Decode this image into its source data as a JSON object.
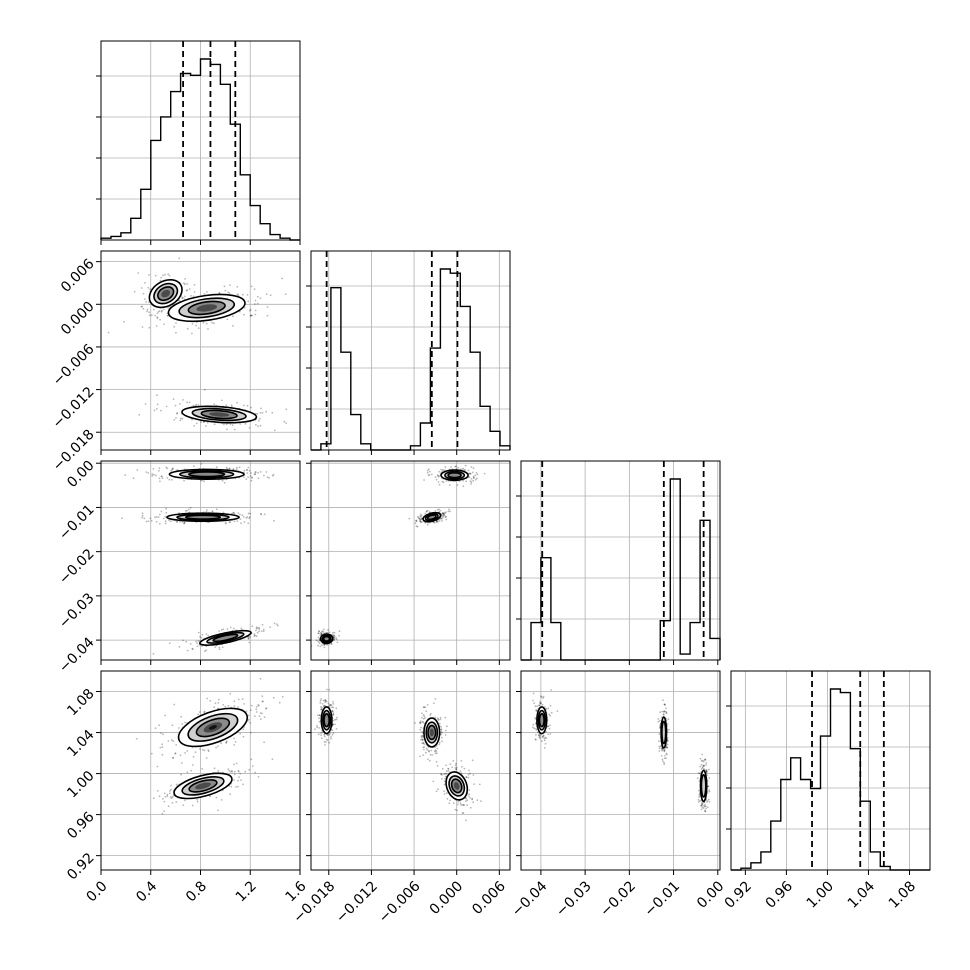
{
  "colors": {
    "ink": "#000000",
    "grid": "#b0b0b0",
    "background": "#ffffff",
    "fill_levels": [
      "#ffffff",
      "#cfcfcf",
      "#8a8a8a",
      "#4a4a4a",
      "#111111"
    ]
  },
  "chart_data": {
    "type": "corner",
    "title": "",
    "grid": true,
    "parameters": [
      {
        "index": 0,
        "range": [
          0.0,
          1.6
        ],
        "ticks": [
          "0.0",
          "0.4",
          "0.8",
          "1.2",
          "1.6"
        ],
        "tick_values": [
          0.0,
          0.4,
          0.8,
          1.2,
          1.6
        ]
      },
      {
        "index": 1,
        "range": [
          -0.0205,
          0.0075
        ],
        "ticks": [
          "−0.018",
          "−0.012",
          "−0.006",
          "0.000",
          "0.006"
        ],
        "tick_values": [
          -0.018,
          -0.012,
          -0.006,
          0.0,
          0.006
        ]
      },
      {
        "index": 2,
        "range": [
          -0.0445,
          0.0005
        ],
        "ticks": [
          "−0.04",
          "−0.03",
          "−0.02",
          "−0.01",
          "0.00"
        ],
        "tick_values": [
          -0.04,
          -0.03,
          -0.02,
          -0.01,
          0.0
        ]
      },
      {
        "index": 3,
        "range": [
          0.906,
          1.1
        ],
        "ticks": [
          "0.92",
          "0.96",
          "1.00",
          "1.04",
          "1.08"
        ],
        "tick_values": [
          0.92,
          0.96,
          1.0,
          1.04,
          1.08
        ]
      }
    ],
    "histograms": [
      {
        "param": 0,
        "bin_start": 0.0,
        "bin_width": 0.08,
        "counts": [
          0.01,
          0.02,
          0.04,
          0.12,
          0.28,
          0.55,
          0.68,
          0.82,
          0.92,
          0.91,
          1.0,
          0.97,
          0.86,
          0.64,
          0.36,
          0.19,
          0.09,
          0.03,
          0.01,
          0.0
        ],
        "quantiles": [
          0.66,
          0.88,
          1.08
        ]
      },
      {
        "param": 1,
        "bin_start": -0.0205,
        "bin_width": 0.0014,
        "counts": [
          0.0,
          0.03,
          0.78,
          0.47,
          0.17,
          0.03,
          0.0,
          0.0,
          0.0,
          0.0,
          0.02,
          0.13,
          0.49,
          0.87,
          0.85,
          0.69,
          0.47,
          0.21,
          0.09,
          0.02
        ],
        "quantiles": [
          -0.0183,
          -0.0035,
          0.0001
        ]
      },
      {
        "param": 2,
        "bin_start": -0.0445,
        "bin_width": 0.00225,
        "counts": [
          0.0,
          0.19,
          0.52,
          0.19,
          0.0,
          0.0,
          0.0,
          0.0,
          0.0,
          0.0,
          0.0,
          0.0,
          0.0,
          0.0,
          0.2,
          0.92,
          0.03,
          0.19,
          0.71,
          0.11
        ],
        "quantiles": [
          -0.0397,
          -0.0122,
          -0.0032
        ]
      },
      {
        "param": 3,
        "bin_start": 0.906,
        "bin_width": 0.0097,
        "counts": [
          0.0,
          0.01,
          0.04,
          0.1,
          0.27,
          0.5,
          0.62,
          0.5,
          0.45,
          0.74,
          1.0,
          0.98,
          0.67,
          0.38,
          0.1,
          0.02,
          0.0,
          0.0,
          0.0,
          0.0
        ],
        "quantiles": [
          0.985,
          1.032,
          1.055
        ]
      }
    ],
    "joint_modes": [
      {
        "row": 1,
        "col": 0,
        "modes": [
          {
            "center": [
              0.85,
              -0.0005
            ],
            "width": [
              0.62,
              0.0035
            ],
            "rotation": -8,
            "weight": 1.0
          },
          {
            "center": [
              0.52,
              0.0015
            ],
            "width": [
              0.28,
              0.0035
            ],
            "rotation": -30,
            "weight": 0.55
          },
          {
            "center": [
              0.95,
              -0.0155
            ],
            "width": [
              0.6,
              0.0022
            ],
            "rotation": 4,
            "weight": 0.75
          }
        ]
      },
      {
        "row": 2,
        "col": 0,
        "modes": [
          {
            "center": [
              0.85,
              -0.0025
            ],
            "width": [
              0.6,
              0.0022
            ],
            "rotation": 0,
            "weight": 0.9
          },
          {
            "center": [
              0.82,
              -0.0122
            ],
            "width": [
              0.58,
              0.0018
            ],
            "rotation": 0,
            "weight": 0.9
          },
          {
            "center": [
              1.0,
              -0.0395
            ],
            "width": [
              0.42,
              0.0022
            ],
            "rotation": -12,
            "weight": 0.75
          }
        ]
      },
      {
        "row": 2,
        "col": 1,
        "modes": [
          {
            "center": [
              -0.0003,
              -0.0027
            ],
            "width": [
              0.0038,
              0.0023
            ],
            "rotation": 0,
            "weight": 0.85
          },
          {
            "center": [
              -0.0035,
              -0.0122
            ],
            "width": [
              0.0025,
              0.0018
            ],
            "rotation": -15,
            "weight": 0.9
          },
          {
            "center": [
              -0.0183,
              -0.0397
            ],
            "width": [
              0.0017,
              0.0021
            ],
            "rotation": 0,
            "weight": 0.8
          }
        ]
      },
      {
        "row": 3,
        "col": 0,
        "modes": [
          {
            "center": [
              0.9,
              1.045
            ],
            "width": [
              0.58,
              0.03
            ],
            "rotation": -20,
            "weight": 1.0
          },
          {
            "center": [
              0.82,
              0.988
            ],
            "width": [
              0.48,
              0.02
            ],
            "rotation": -15,
            "weight": 0.8
          }
        ]
      },
      {
        "row": 3,
        "col": 1,
        "modes": [
          {
            "center": [
              -0.0183,
              1.052
            ],
            "width": [
              0.0015,
              0.026
            ],
            "rotation": 0,
            "weight": 0.9
          },
          {
            "center": [
              -0.0035,
              1.04
            ],
            "width": [
              0.0022,
              0.028
            ],
            "rotation": 0,
            "weight": 0.9
          },
          {
            "center": [
              0.0,
              0.988
            ],
            "width": [
              0.0028,
              0.028
            ],
            "rotation": -20,
            "weight": 0.85
          }
        ]
      },
      {
        "row": 3,
        "col": 2,
        "modes": [
          {
            "center": [
              -0.0398,
              1.052
            ],
            "width": [
              0.0022,
              0.026
            ],
            "rotation": 0,
            "weight": 0.9
          },
          {
            "center": [
              -0.0122,
              1.04
            ],
            "width": [
              0.0012,
              0.03
            ],
            "rotation": 0,
            "weight": 0.9
          },
          {
            "center": [
              -0.0032,
              0.988
            ],
            "width": [
              0.0014,
              0.03
            ],
            "rotation": 0,
            "weight": 0.85
          }
        ]
      }
    ]
  }
}
